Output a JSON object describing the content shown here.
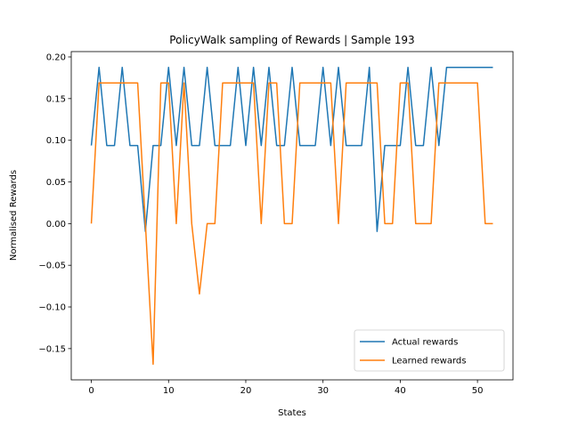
{
  "chart_data": {
    "type": "line",
    "title": "PolicyWalk sampling of Rewards | Sample 193",
    "xlabel": "States",
    "ylabel": "Normalised Rewards",
    "xlim": [
      -2.6,
      54.6
    ],
    "ylim": [
      -0.1875,
      0.2064
    ],
    "xticks": [
      0,
      10,
      20,
      30,
      40,
      50
    ],
    "yticks": [
      -0.15,
      -0.1,
      -0.05,
      0.0,
      0.05,
      0.1,
      0.15,
      0.2
    ],
    "ytick_labels": [
      "−0.15",
      "−0.10",
      "−0.05",
      "0.00",
      "0.05",
      "0.10",
      "0.15",
      "0.20"
    ],
    "grid": false,
    "legend_position": "lower-right",
    "x": [
      0,
      1,
      2,
      3,
      4,
      5,
      6,
      7,
      8,
      9,
      10,
      11,
      12,
      13,
      14,
      15,
      16,
      17,
      18,
      19,
      20,
      21,
      22,
      23,
      24,
      25,
      26,
      27,
      28,
      29,
      30,
      31,
      32,
      33,
      34,
      35,
      36,
      37,
      38,
      39,
      40,
      41,
      42,
      43,
      44,
      45,
      46,
      47,
      48,
      49,
      50,
      51,
      52
    ],
    "series": [
      {
        "name": "Actual rewards",
        "color": "#1f77b4",
        "values": [
          0.0937,
          0.1875,
          0.0937,
          0.0937,
          0.1875,
          0.0937,
          0.0937,
          -0.0094,
          0.0937,
          0.0937,
          0.1875,
          0.0937,
          0.1875,
          0.0937,
          0.0937,
          0.1875,
          0.0937,
          0.0937,
          0.0937,
          0.1875,
          0.0937,
          0.1875,
          0.0937,
          0.1875,
          0.0937,
          0.0937,
          0.1875,
          0.0937,
          0.0937,
          0.0937,
          0.1875,
          0.0937,
          0.1875,
          0.0937,
          0.0937,
          0.0937,
          0.1875,
          -0.0094,
          0.0937,
          0.0937,
          0.0937,
          0.1875,
          0.0937,
          0.0937,
          0.1875,
          0.0937,
          0.1875,
          0.1875,
          0.1875,
          0.1875,
          0.1875,
          0.1875,
          0.1875
        ]
      },
      {
        "name": "Learned rewards",
        "color": "#ff7f0e",
        "values": [
          0.0,
          0.1688,
          0.1688,
          0.1688,
          0.1688,
          0.1688,
          0.1688,
          0.0,
          -0.1688,
          0.1688,
          0.1688,
          0.0,
          0.1688,
          0.0,
          -0.0844,
          0.0,
          0.0,
          0.1688,
          0.1688,
          0.1688,
          0.1688,
          0.1688,
          0.0,
          0.1688,
          0.1688,
          0.0,
          0.0,
          0.1688,
          0.1688,
          0.1688,
          0.1688,
          0.1688,
          0.0,
          0.1688,
          0.1688,
          0.1688,
          0.1688,
          0.1688,
          0.0,
          0.0,
          0.1688,
          0.1688,
          0.0,
          0.0,
          0.0,
          0.1688,
          0.1688,
          0.1688,
          0.1688,
          0.1688,
          0.1688,
          0.0,
          0.0
        ]
      }
    ]
  }
}
